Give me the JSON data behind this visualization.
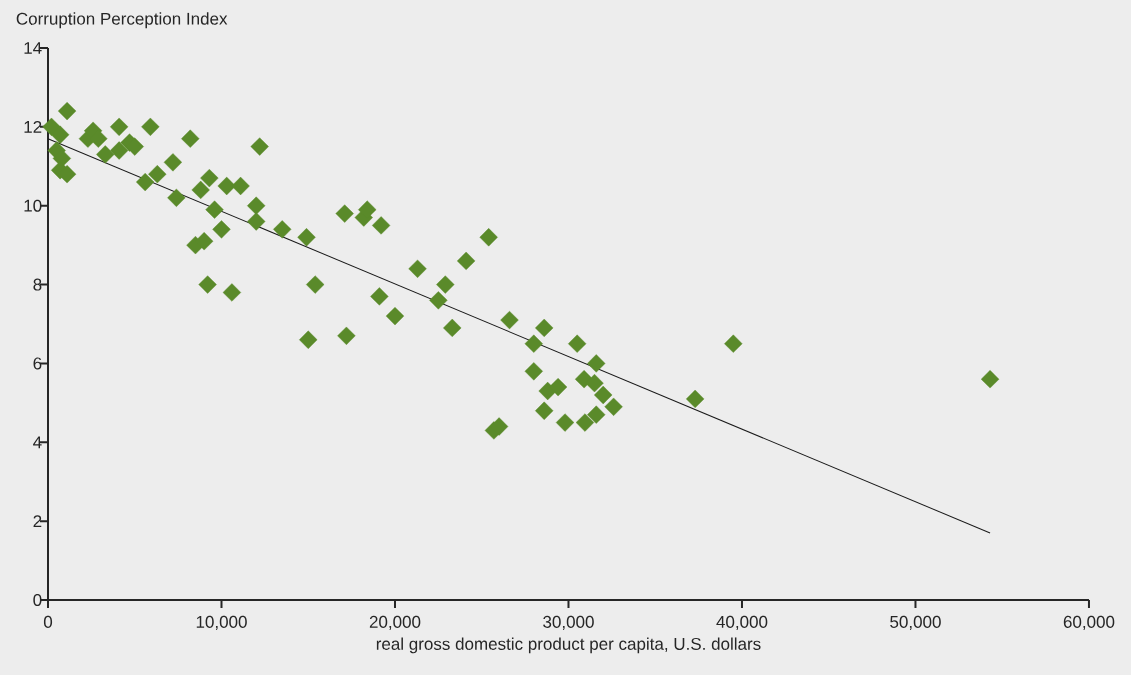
{
  "chart_data": {
    "type": "scatter",
    "ylabel": "Corruption Perception Index",
    "xlabel": "real gross domestic product per capita, U.S. dollars",
    "xlim": [
      0,
      60000
    ],
    "ylim": [
      0,
      14
    ],
    "xticks": [
      {
        "value": 0,
        "label": "0"
      },
      {
        "value": 10000,
        "label": "10,000"
      },
      {
        "value": 20000,
        "label": "20,000"
      },
      {
        "value": 30000,
        "label": "30,000"
      },
      {
        "value": 40000,
        "label": "40,000"
      },
      {
        "value": 50000,
        "label": "50,000"
      },
      {
        "value": 60000,
        "label": "60,000"
      }
    ],
    "yticks": [
      0,
      2,
      4,
      6,
      8,
      10,
      12,
      14
    ],
    "marker": "diamond",
    "series": [
      {
        "color": "#5a8a2a",
        "x": [
          200,
          500,
          700,
          800,
          700,
          1100,
          1100,
          2300,
          2600,
          2900,
          3300,
          4100,
          4100,
          4700,
          5000,
          5900,
          5600,
          6300,
          7200,
          7400,
          8200,
          8500,
          8800,
          9000,
          9300,
          9200,
          9600,
          10000,
          10300,
          10600,
          11100,
          12000,
          12000,
          12200,
          13500,
          14900,
          15000,
          15400,
          17100,
          17200,
          18200,
          18400,
          19200,
          19100,
          20000,
          21300,
          22500,
          22900,
          23300,
          24100,
          25400,
          25700,
          26000,
          26600,
          28000,
          28000,
          28600,
          28600,
          28800,
          29400,
          29800,
          30500,
          30900,
          30950,
          31500,
          31600,
          31600,
          32000,
          32600,
          37300,
          39500,
          54300
        ],
        "values": [
          12.0,
          11.4,
          11.8,
          11.2,
          10.9,
          10.8,
          12.4,
          11.7,
          11.9,
          11.7,
          11.3,
          12.0,
          11.4,
          11.6,
          11.5,
          12.0,
          10.6,
          10.8,
          11.1,
          10.2,
          11.7,
          9.0,
          10.4,
          9.1,
          10.7,
          8.0,
          9.9,
          9.4,
          10.5,
          7.8,
          10.5,
          10.0,
          9.6,
          11.5,
          9.4,
          9.2,
          6.6,
          8.0,
          9.8,
          6.7,
          9.7,
          9.9,
          9.5,
          7.7,
          7.2,
          8.4,
          7.6,
          8.0,
          6.9,
          8.6,
          9.2,
          4.3,
          4.4,
          7.1,
          5.8,
          6.5,
          6.9,
          4.8,
          5.3,
          5.4,
          4.5,
          6.5,
          5.6,
          4.5,
          5.5,
          6.0,
          4.7,
          5.2,
          4.9,
          5.1,
          6.5,
          5.6
        ]
      },
      {
        "type": "line",
        "color": "#1a1a1a",
        "marker": "none",
        "line_style": "solid",
        "x": [
          0,
          54300
        ],
        "values": [
          11.7,
          1.7
        ]
      }
    ]
  }
}
